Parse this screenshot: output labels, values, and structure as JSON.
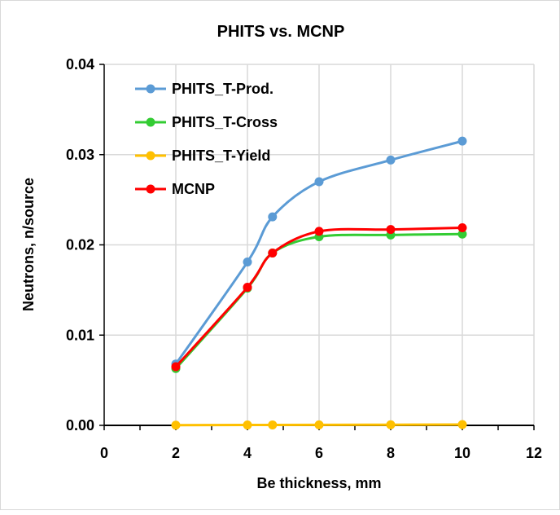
{
  "chart_data": {
    "type": "line",
    "title": "PHITS vs. MCNP",
    "xlabel": "Be thickness, mm",
    "ylabel": "Neutrons, n/source",
    "xlim": [
      0,
      12
    ],
    "ylim": [
      0,
      0.04
    ],
    "xticks": [
      "0",
      "2",
      "4",
      "6",
      "8",
      "10",
      "12"
    ],
    "yticks": [
      "0.00",
      "0.01",
      "0.02",
      "0.03",
      "0.04"
    ],
    "grid": true,
    "legend_position": "top-left",
    "x": [
      2,
      4,
      4.7,
      6,
      8,
      10
    ],
    "series": [
      {
        "name": "PHITS_T-Prod.",
        "color": "#5b9bd5",
        "values": [
          0.0068,
          0.0181,
          0.0231,
          0.027,
          0.0294,
          0.0315
        ]
      },
      {
        "name": "PHITS_T-Cross",
        "color": "#33cc33",
        "values": [
          0.0063,
          0.0152,
          0.0191,
          0.0209,
          0.0211,
          0.0212
        ]
      },
      {
        "name": "PHITS_T-Yield",
        "color": "#ffc000",
        "values": [
          2e-05,
          4e-05,
          5e-05,
          6e-05,
          7e-05,
          9e-05
        ]
      },
      {
        "name": "MCNP",
        "color": "#ff0000",
        "values": [
          0.0065,
          0.0153,
          0.0191,
          0.0215,
          0.0217,
          0.0219
        ]
      }
    ]
  }
}
